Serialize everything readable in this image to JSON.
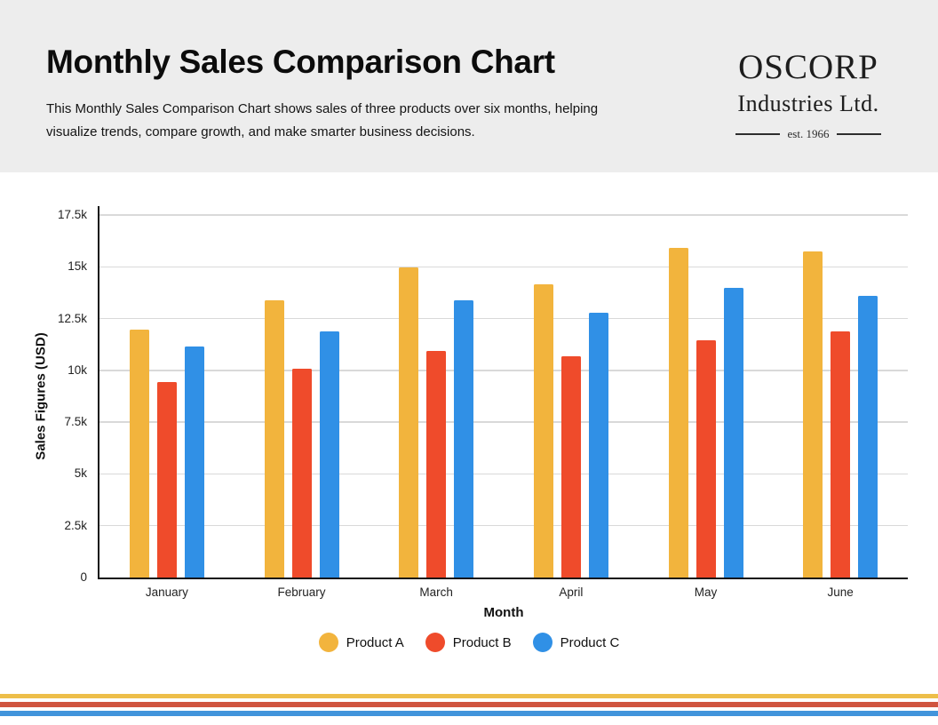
{
  "header": {
    "title": "Monthly Sales Comparison Chart",
    "description_line1": "This Monthly Sales Comparison Chart shows sales of three products over six months, helping",
    "description_line2": "visualize trends, compare growth, and make smarter business decisions.",
    "logo": {
      "name": "OSCORP",
      "subtitle": "Industries Ltd.",
      "established": "est. 1966"
    }
  },
  "chart_data": {
    "type": "bar",
    "title": "",
    "xlabel": "Month",
    "ylabel": "Sales Figures (USD)",
    "categories": [
      "January",
      "February",
      "March",
      "April",
      "May",
      "June"
    ],
    "series": [
      {
        "name": "Product A",
        "color": "#F2B43D",
        "values": [
          11950,
          13400,
          14950,
          14150,
          15900,
          15750
        ]
      },
      {
        "name": "Product B",
        "color": "#EF4B2B",
        "values": [
          9450,
          10100,
          10950,
          10700,
          11450,
          11900
        ]
      },
      {
        "name": "Product C",
        "color": "#3090E6",
        "values": [
          11150,
          11900,
          13400,
          12800,
          14000,
          13600
        ]
      }
    ],
    "ylim": [
      0,
      17500
    ],
    "ytick_step": 2500,
    "ytick_labels": [
      "0",
      "2.5k",
      "5k",
      "7.5k",
      "10k",
      "12.5k",
      "15k",
      "17.5k"
    ],
    "grid": true,
    "legend_position": "bottom"
  },
  "footer": {
    "stripe_colors": [
      "#EDBE49",
      "#D0543F",
      "#4294DB"
    ]
  }
}
